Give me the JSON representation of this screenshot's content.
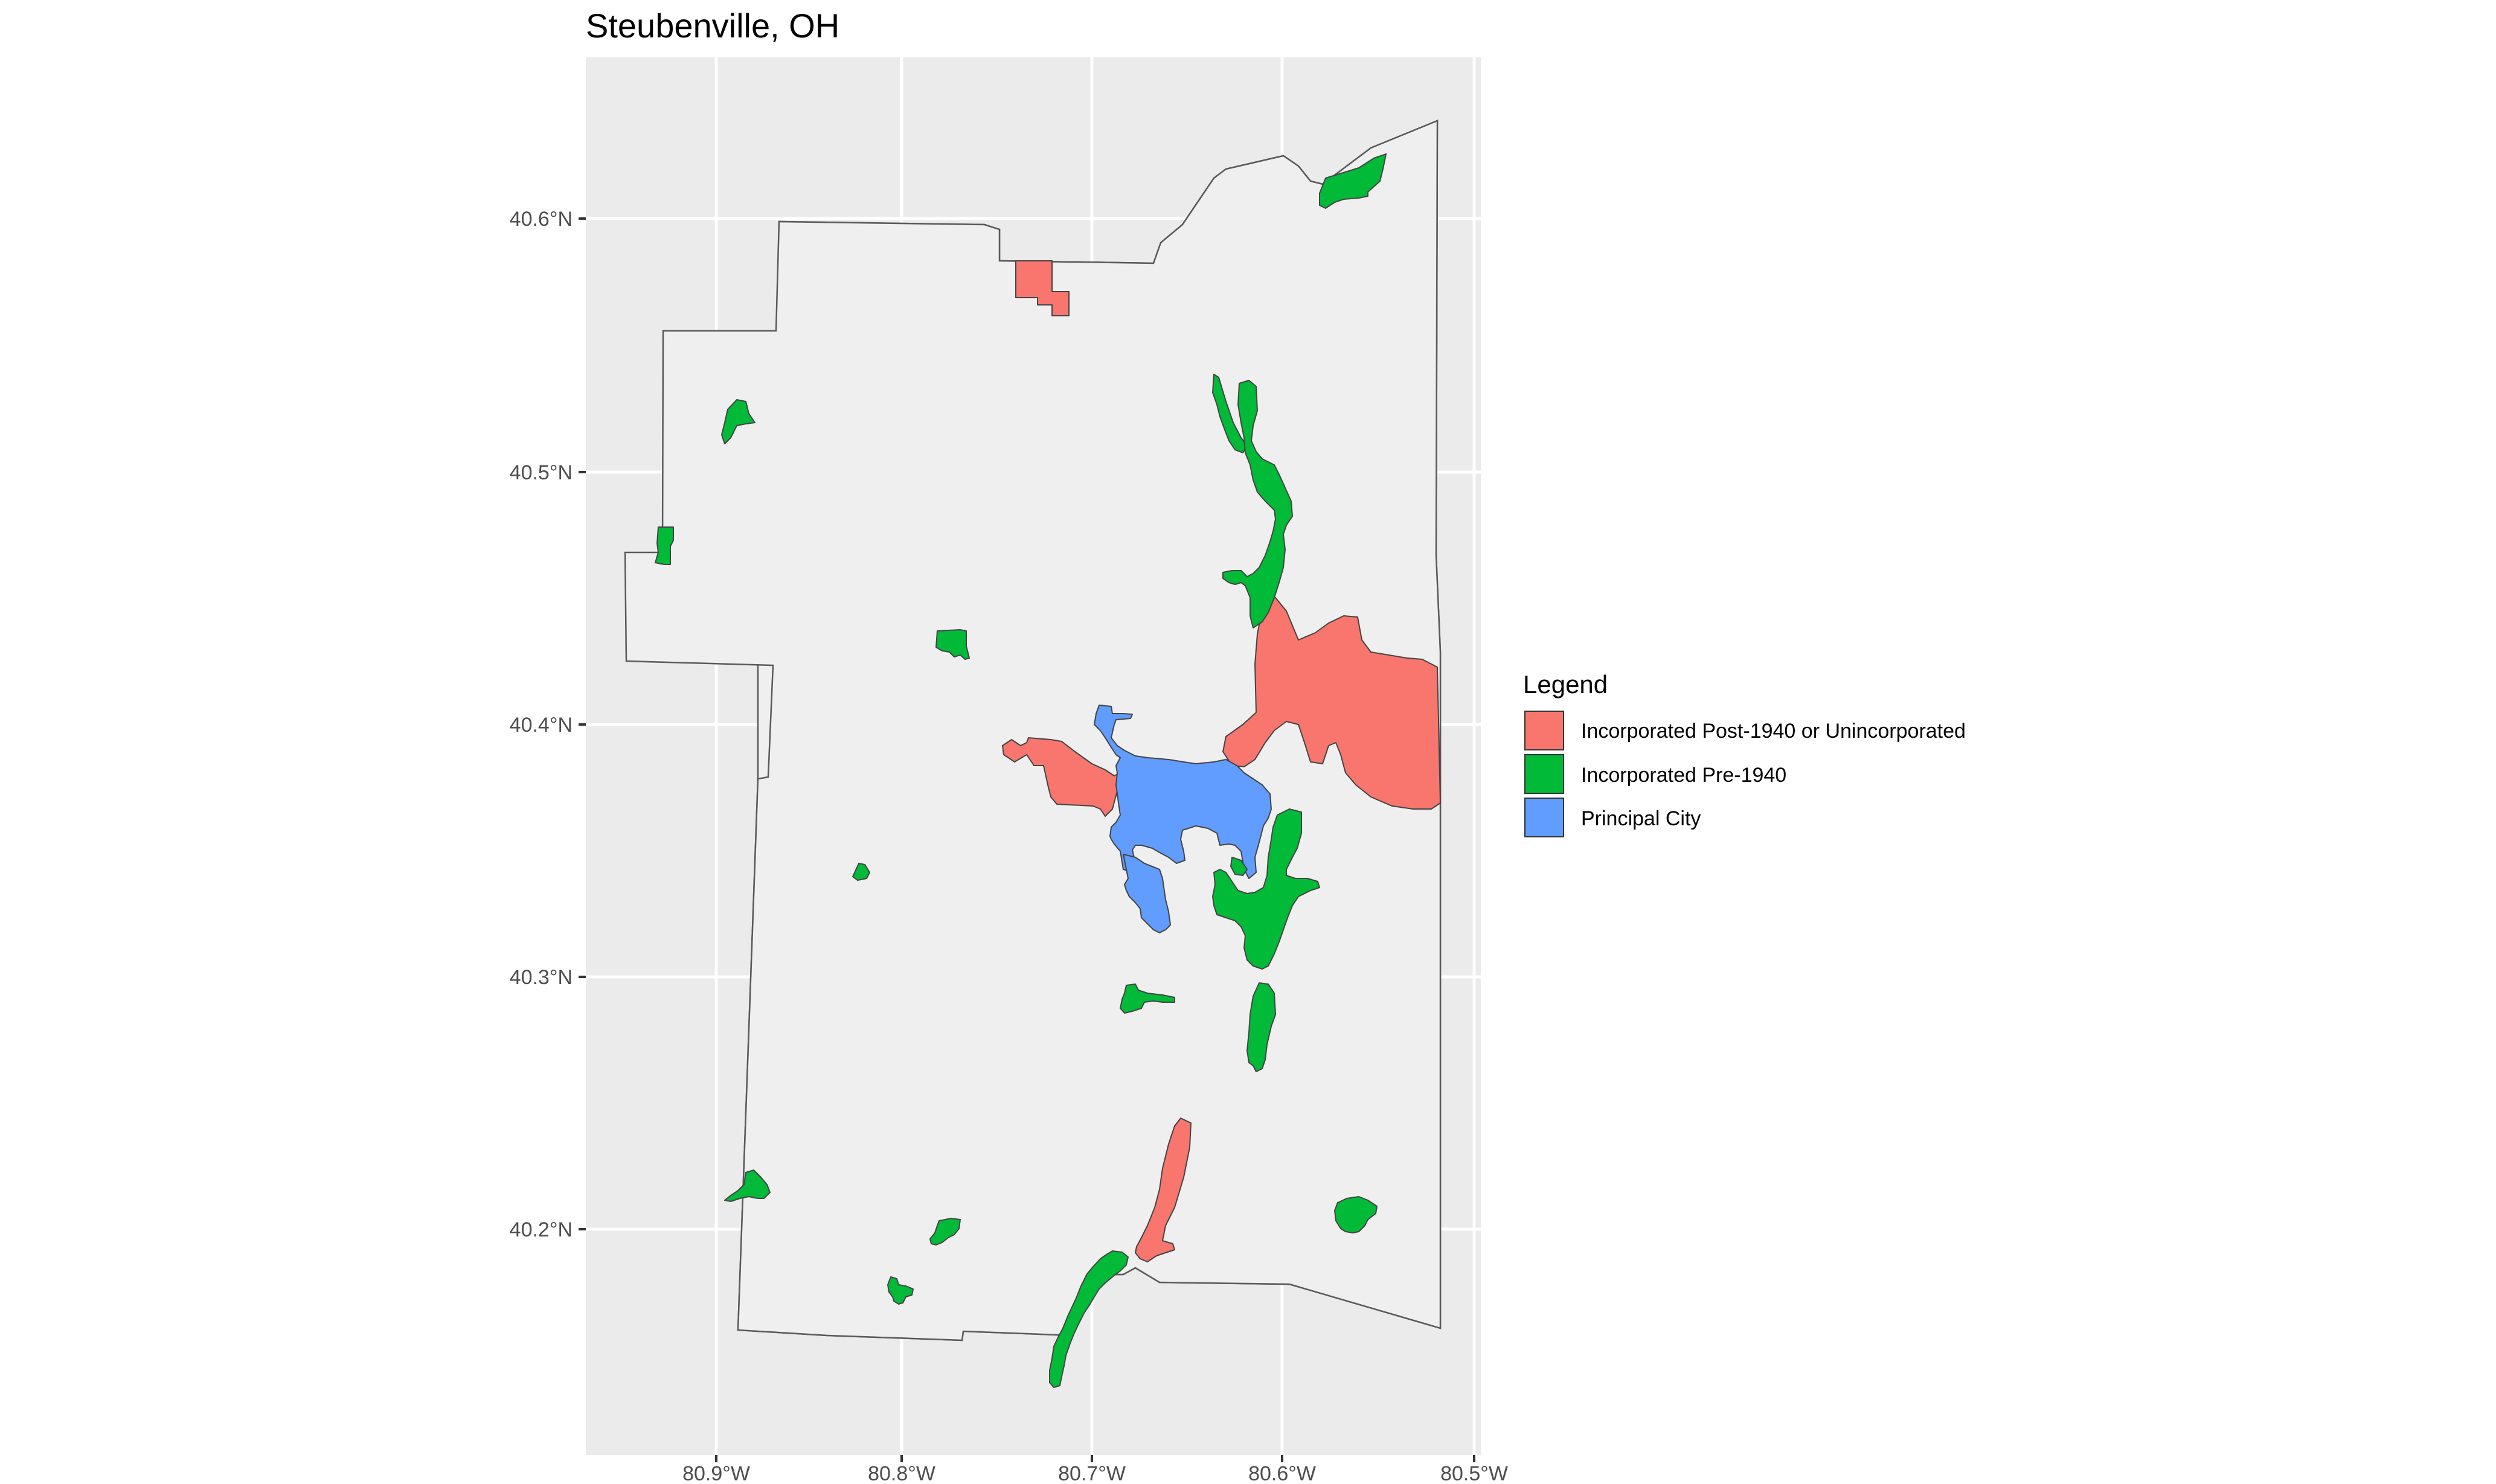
{
  "title": "Steubenville, OH",
  "colors": {
    "panel_background": "#ebebeb",
    "gridline": "#ffffff",
    "county_fill": "#efefef",
    "post1940": "#f8766d",
    "pre1940": "#00ba38",
    "principal": "#619cff"
  },
  "axes": {
    "x_ticks": [
      "80.9°W",
      "80.8°W",
      "80.7°W",
      "80.6°W",
      "80.5°W"
    ],
    "y_ticks": [
      "40.6°N",
      "40.5°N",
      "40.4°N",
      "40.3°N",
      "40.2°N"
    ]
  },
  "legend": {
    "title": "Legend",
    "items": [
      {
        "label": "Incorporated Post-1940 or Unincorporated",
        "color": "#f8766d"
      },
      {
        "label": "Incorporated Pre-1940",
        "color": "#00ba38"
      },
      {
        "label": "Principal City",
        "color": "#619cff"
      }
    ]
  }
}
